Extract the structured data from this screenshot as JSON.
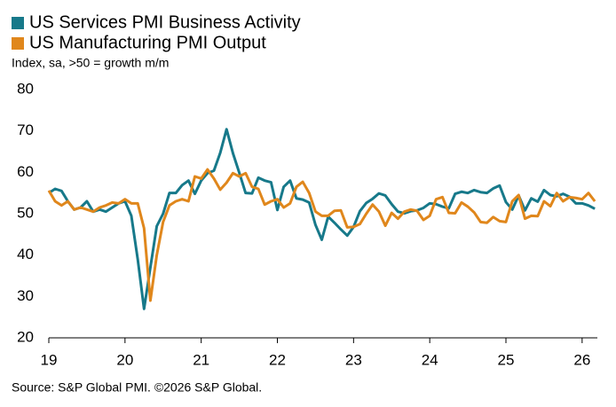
{
  "chart_data": {
    "type": "line",
    "subtitle": "Index, sa, >50 = growth m/m",
    "source": "Source: S&P Global PMI. ©2026 S&P Global.",
    "x": [
      19,
      19.083,
      19.167,
      19.25,
      19.333,
      19.417,
      19.5,
      19.583,
      19.667,
      19.75,
      19.833,
      19.917,
      20,
      20.083,
      20.167,
      20.25,
      20.333,
      20.417,
      20.5,
      20.583,
      20.667,
      20.75,
      20.833,
      20.917,
      21,
      21.083,
      21.167,
      21.25,
      21.333,
      21.417,
      21.5,
      21.583,
      21.667,
      21.75,
      21.833,
      21.917,
      22,
      22.083,
      22.167,
      22.25,
      22.333,
      22.417,
      22.5,
      22.583,
      22.667,
      22.75,
      22.833,
      22.917,
      23,
      23.083,
      23.167,
      23.25,
      23.333,
      23.417,
      23.5,
      23.583,
      23.667,
      23.75,
      23.833,
      23.917,
      24,
      24.083,
      24.167,
      24.25,
      24.333,
      24.417,
      24.5,
      24.583,
      24.667,
      24.75,
      24.833,
      24.917,
      25,
      25.083,
      25.167,
      25.25,
      25.333,
      25.417,
      25.5,
      25.583,
      25.667,
      25.75,
      25.833,
      25.917,
      26,
      26.083,
      26.167
    ],
    "series": [
      {
        "name": "US Services PMI Business Activity",
        "color": "#17798a",
        "values": [
          55,
          56,
          55.5,
          53,
          51,
          51.5,
          53,
          50.5,
          51,
          50.5,
          51.5,
          52.5,
          53,
          49.5,
          39,
          27,
          37,
          47,
          50,
          55,
          55,
          56.9,
          58,
          54.8,
          58,
          59.8,
          60.4,
          64.7,
          70.4,
          64.6,
          59.9,
          55,
          54.9,
          58.7,
          58,
          57.6,
          50.9,
          56.5,
          58,
          53.7,
          53.4,
          52.7,
          47.3,
          43.7,
          49.3,
          47.8,
          46.2,
          44.7,
          46.8,
          50.6,
          52.6,
          53.6,
          54.9,
          54.4,
          52.3,
          50.5,
          50.1,
          50.6,
          50.8,
          51.4,
          52.5,
          52.3,
          51.7,
          51.3,
          54.8,
          55.3,
          55,
          55.7,
          55.2,
          55,
          56.1,
          56.8,
          52.8,
          51,
          54.4,
          50.8,
          53.7,
          52.9,
          55.7,
          54.5,
          54.2,
          54.8,
          54.1,
          52.5,
          52.5,
          52,
          51.2
        ]
      },
      {
        "name": "US Manufacturing PMI Output",
        "color": "#e0871c",
        "values": [
          55.6,
          53,
          52,
          53,
          51,
          51.5,
          51,
          50.5,
          51.5,
          52,
          52.7,
          52.5,
          53.5,
          52.5,
          52.5,
          46.5,
          29,
          40,
          48,
          52,
          53,
          53.5,
          53,
          59,
          58.5,
          60.7,
          58.5,
          55.8,
          57.5,
          59.8,
          59,
          59.8,
          56.5,
          56,
          52.2,
          53,
          53.5,
          51.5,
          52.5,
          56.5,
          57.7,
          55,
          50.5,
          49.5,
          49.5,
          50.7,
          50.8,
          46.7,
          46.8,
          47.5,
          50,
          52.2,
          50.5,
          47.1,
          50.2,
          48.8,
          50.5,
          51,
          50.7,
          48.5,
          49.5,
          53.5,
          54,
          50.2,
          50.1,
          52.7,
          51.7,
          50.3,
          48,
          47.8,
          49.2,
          48.2,
          48,
          53,
          54.5,
          48.8,
          49.5,
          49.4,
          53,
          51.8,
          55,
          53,
          54,
          53.8,
          53.5,
          55,
          53
        ]
      }
    ],
    "xlim": [
      19,
      26.2
    ],
    "xticks": [
      19,
      20,
      21,
      22,
      23,
      24,
      25,
      26
    ],
    "ylim": [
      20,
      80
    ],
    "yticks": [
      20,
      30,
      40,
      50,
      60,
      70,
      80
    ]
  }
}
